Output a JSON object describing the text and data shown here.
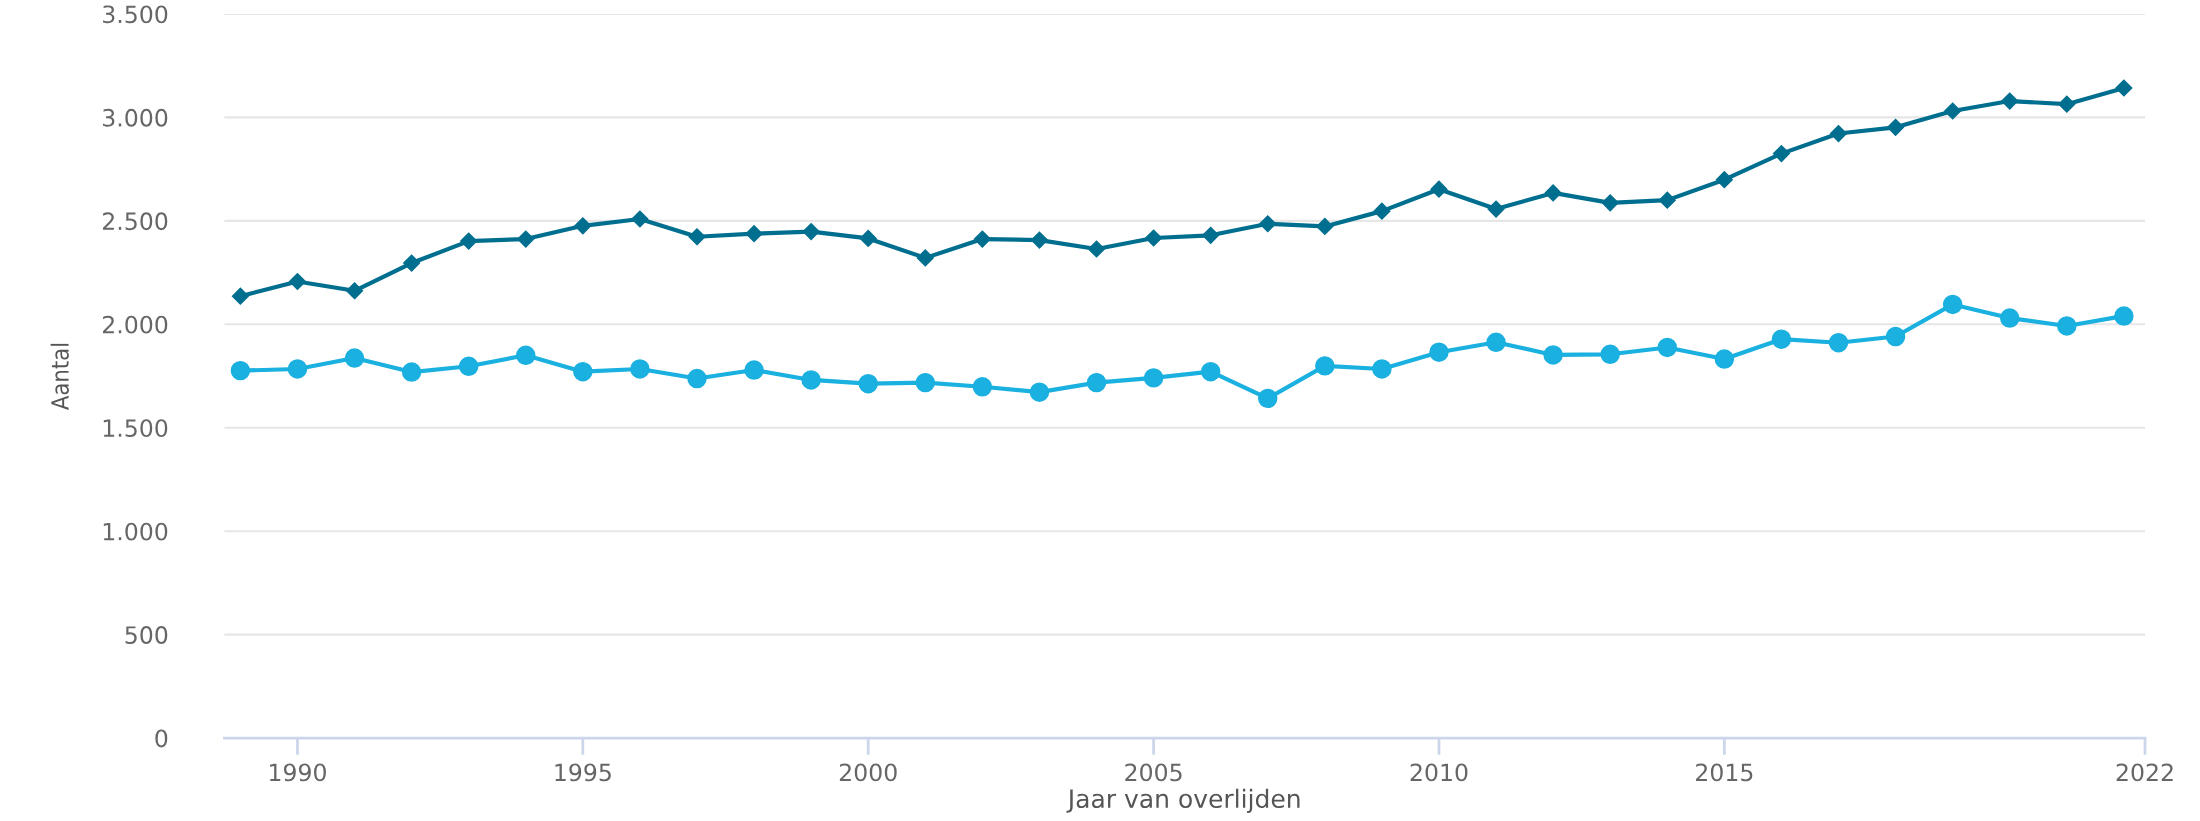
{
  "chart_data": {
    "type": "line",
    "xlabel": "Jaar van overlijden",
    "ylabel": "Aantal",
    "x": [
      1989,
      1990,
      1991,
      1992,
      1993,
      1994,
      1995,
      1996,
      1997,
      1998,
      1999,
      2000,
      2001,
      2002,
      2003,
      2004,
      2005,
      2006,
      2007,
      2008,
      2009,
      2010,
      2011,
      2012,
      2013,
      2014,
      2015,
      2016,
      2017,
      2018,
      2019,
      2020,
      2021,
      2022
    ],
    "series": [
      {
        "color": "#006f8f",
        "marker": "diamond",
        "values": [
          2136,
          2207,
          2162,
          2296,
          2402,
          2412,
          2476,
          2509,
          2423,
          2438,
          2448,
          2415,
          2321,
          2412,
          2407,
          2364,
          2417,
          2430,
          2486,
          2473,
          2547,
          2653,
          2557,
          2635,
          2587,
          2600,
          2699,
          2825,
          2922,
          2952,
          3031,
          3079,
          3064,
          3142
        ]
      },
      {
        "color": "#1ab0e0",
        "marker": "circle",
        "values": [
          1776,
          1784,
          1837,
          1769,
          1797,
          1850,
          1771,
          1784,
          1738,
          1779,
          1731,
          1713,
          1718,
          1698,
          1672,
          1718,
          1741,
          1771,
          1642,
          1799,
          1784,
          1865,
          1913,
          1852,
          1855,
          1888,
          1832,
          1928,
          1911,
          1941,
          2096,
          2030,
          1992,
          2040
        ]
      }
    ],
    "xlim": [
      1988.72,
      2022.37
    ],
    "xticks": [
      1990,
      1995,
      2000,
      2005,
      2010,
      2015,
      {
        "value": 2022.37,
        "label": "2022"
      }
    ],
    "ylim": [
      0,
      3500
    ],
    "yticks": [
      {
        "value": 0,
        "label": "0"
      },
      {
        "value": 500,
        "label": "500"
      },
      {
        "value": 1000,
        "label": "1.000"
      },
      {
        "value": 1500,
        "label": "1.500"
      },
      {
        "value": 2000,
        "label": "2.000"
      },
      {
        "value": 2500,
        "label": "2.500"
      },
      {
        "value": 3000,
        "label": "3.000"
      },
      {
        "value": 3500,
        "label": "3.500"
      }
    ],
    "grid": "y",
    "legend": false
  }
}
